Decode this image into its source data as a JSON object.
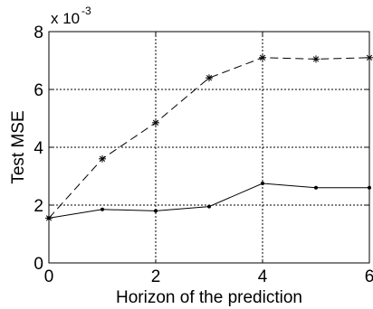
{
  "chart_data": {
    "type": "line",
    "title": "",
    "xlabel": "Horizon of the prediction",
    "ylabel": "Test MSE",
    "y_scale_label": "x 10",
    "y_scale_exponent": "-3",
    "xlim": [
      0,
      6
    ],
    "ylim": [
      0,
      8
    ],
    "x_ticks": [
      "0",
      "2",
      "4",
      "6"
    ],
    "y_ticks": [
      "0",
      "2",
      "4",
      "6",
      "8"
    ],
    "grid": true,
    "legend": "none",
    "series": [
      {
        "style": "dashed",
        "marker": "star",
        "color": "#000000",
        "x": [
          0,
          1,
          2,
          3,
          4,
          5,
          6
        ],
        "y": [
          1.55,
          3.6,
          4.85,
          6.4,
          7.1,
          7.05,
          7.1
        ]
      },
      {
        "style": "solid",
        "marker": "dot",
        "color": "#000000",
        "x": [
          0,
          1,
          2,
          3,
          4,
          5,
          6
        ],
        "y": [
          1.55,
          1.85,
          1.8,
          1.95,
          2.75,
          2.6,
          2.6
        ]
      }
    ]
  }
}
